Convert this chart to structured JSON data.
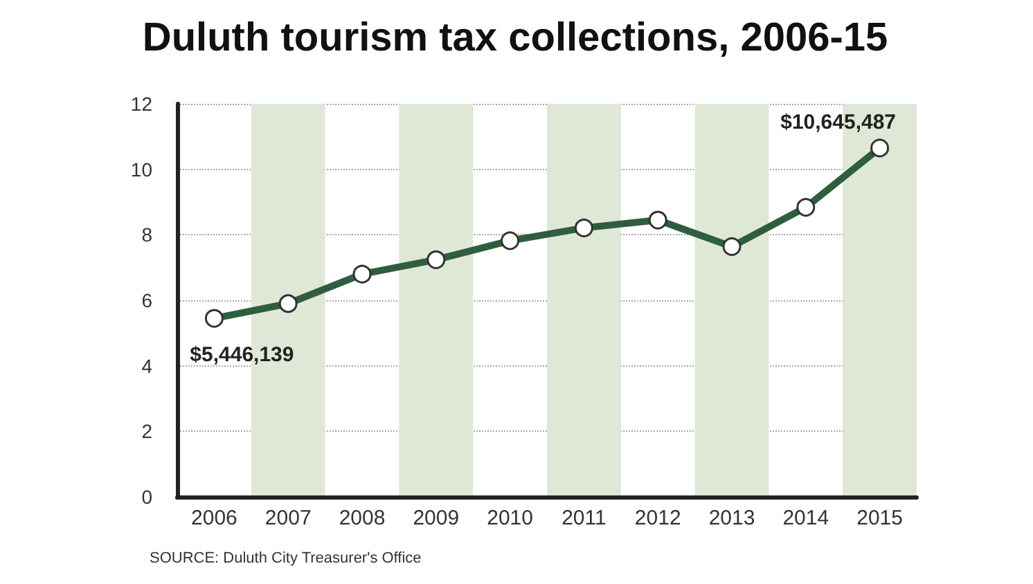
{
  "chart_data": {
    "type": "line",
    "title": "Duluth tourism tax collections, 2006-15",
    "categories": [
      "2006",
      "2007",
      "2008",
      "2009",
      "2010",
      "2011",
      "2012",
      "2013",
      "2014",
      "2015"
    ],
    "series": [
      {
        "color": "#2f5e3f",
        "values": [
          5.45,
          5.9,
          6.8,
          7.24,
          7.82,
          8.21,
          8.45,
          7.64,
          8.84,
          10.65
        ]
      }
    ],
    "ylim": [
      0,
      12
    ],
    "yticks": [
      0,
      2,
      4,
      6,
      8,
      10,
      12
    ],
    "grid": "y",
    "marker": "circle",
    "line_style": "solid",
    "bands": [
      {
        "axis": "x",
        "from": "2007",
        "to": "2007",
        "color": "#dfe8d6"
      },
      {
        "axis": "x",
        "from": "2009",
        "to": "2009",
        "color": "#dfe8d6"
      },
      {
        "axis": "x",
        "from": "2011",
        "to": "2011",
        "color": "#dfe8d6"
      },
      {
        "axis": "x",
        "from": "2013",
        "to": "2013",
        "color": "#dfe8d6"
      },
      {
        "axis": "x",
        "from": "2015",
        "to": "2015",
        "color": "#dfe8d6"
      }
    ],
    "annotations": [
      {
        "text": "$5,446,139",
        "x": "2006",
        "y": 5.45
      },
      {
        "text": "$10,645,487",
        "x": "2015",
        "y": 10.65
      },
      "SOURCE: Duluth City Treasurer's Office"
    ]
  }
}
